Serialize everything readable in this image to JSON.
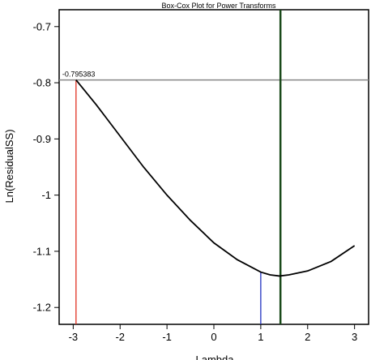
{
  "chart_data": {
    "type": "line",
    "title": "Box-Cox Plot for Power Transforms",
    "xlabel": "Lambda",
    "ylabel": "Ln(ResidualSS)",
    "xlim": [
      -3.3,
      3.3
    ],
    "ylim": [
      -1.23,
      -0.67
    ],
    "x_ticks": [
      -3,
      -2,
      -1,
      0,
      1,
      2,
      3
    ],
    "y_ticks": [
      -1.2,
      -1.1,
      -1,
      -0.9,
      -0.8,
      -0.7
    ],
    "x_tick_labels": [
      "-3",
      "-2",
      "-1",
      "0",
      "1",
      "2",
      "3"
    ],
    "y_tick_labels": [
      "-1.2",
      "-1.1",
      "-1",
      "-0.9",
      "-0.8",
      "-0.7"
    ],
    "grid": false,
    "series": [
      {
        "x": [
          -2.94,
          -2.5,
          -2.0,
          -1.5,
          -1.0,
          -0.5,
          0.0,
          0.5,
          1.0,
          1.2,
          1.4,
          1.6,
          2.0,
          2.5,
          3.0
        ],
        "y": [
          -0.795,
          -0.84,
          -0.895,
          -0.95,
          -1.0,
          -1.045,
          -1.085,
          -1.115,
          -1.137,
          -1.142,
          -1.144,
          -1.142,
          -1.135,
          -1.118,
          -1.09
        ],
        "color": "#000000"
      }
    ],
    "reference_lines": [
      {
        "orientation": "horizontal",
        "y": -0.795,
        "color": "#888888"
      },
      {
        "orientation": "vertical",
        "x": -2.94,
        "y_top": -0.795,
        "color": "#e03020"
      },
      {
        "orientation": "vertical",
        "x": 1.0,
        "y_top": -1.137,
        "color": "#2030c0"
      },
      {
        "orientation": "vertical",
        "x": 1.42,
        "full": true,
        "color": "#1a4a1a"
      }
    ],
    "annotations": [
      {
        "text": "-0.795383",
        "x": -2.94,
        "y": -0.795
      }
    ]
  }
}
